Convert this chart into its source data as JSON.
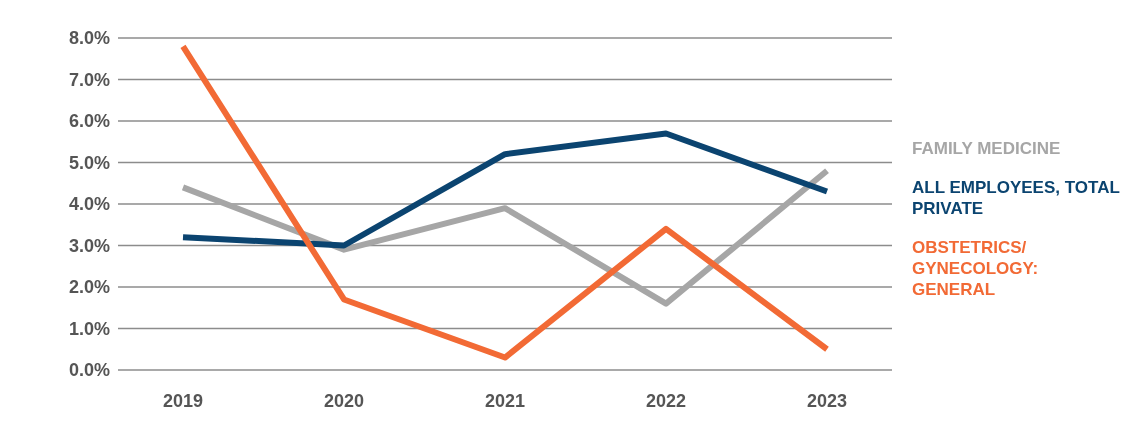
{
  "chart_data": {
    "type": "line",
    "categories": [
      "2019",
      "2020",
      "2021",
      "2022",
      "2023"
    ],
    "series": [
      {
        "name": "FAMILY MEDICINE",
        "color": "#a6a6a6",
        "values": [
          4.4,
          2.9,
          3.9,
          1.6,
          4.8
        ]
      },
      {
        "name": "ALL EMPLOYEES, TOTAL PRIVATE",
        "color": "#0b4470",
        "values": [
          3.2,
          3.0,
          5.2,
          5.7,
          4.3
        ]
      },
      {
        "name": "OBSTETRICS/ GYNECOLOGY: GENERAL",
        "color": "#f26a35",
        "values": [
          7.8,
          1.7,
          0.3,
          3.4,
          0.5
        ]
      }
    ],
    "ylim": [
      0,
      8
    ],
    "yticks": [
      {
        "value": 0,
        "label": "0.0%"
      },
      {
        "value": 1,
        "label": "1.0%"
      },
      {
        "value": 2,
        "label": "2.0%"
      },
      {
        "value": 3,
        "label": "3.0%"
      },
      {
        "value": 4,
        "label": "4.0%"
      },
      {
        "value": 5,
        "label": "5.0%"
      },
      {
        "value": 6,
        "label": "6.0%"
      },
      {
        "value": 7,
        "label": "7.0%"
      },
      {
        "value": 8,
        "label": "8.0%"
      }
    ],
    "grid": "y",
    "legend": "right",
    "marker": "none",
    "line_style": "solid"
  }
}
